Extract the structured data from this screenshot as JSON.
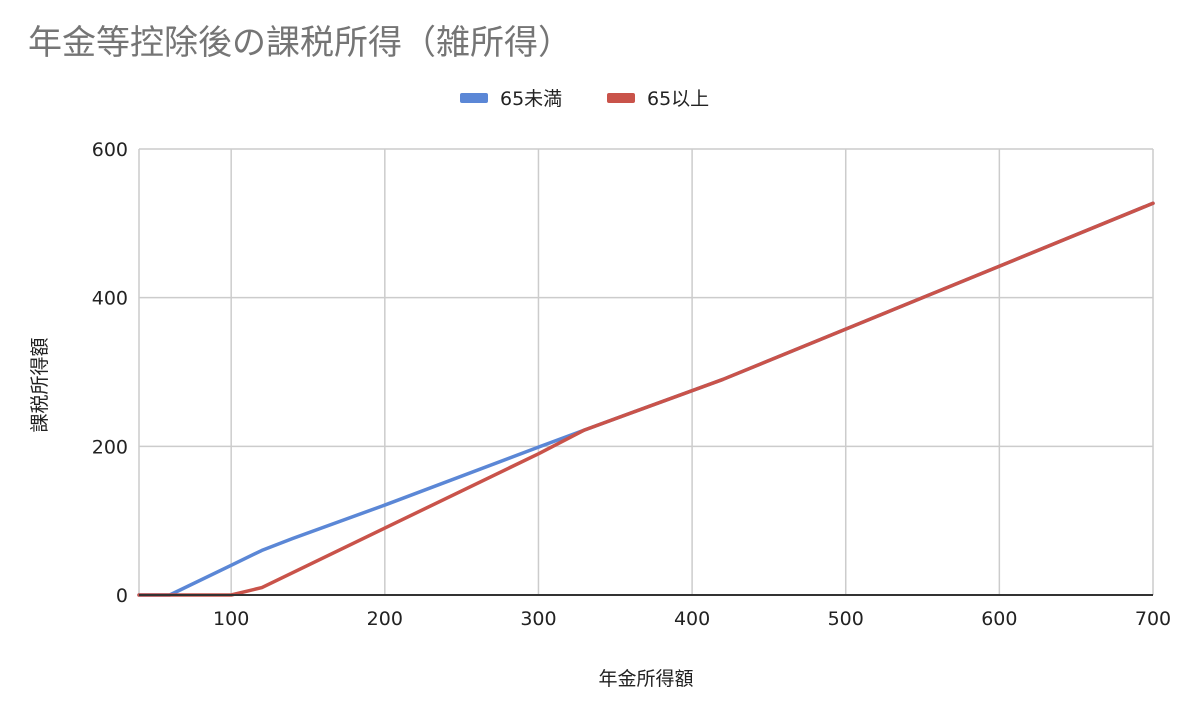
{
  "chart_data": {
    "type": "line",
    "title": "年金等控除後の課税所得（雑所得）",
    "xlabel": "年金所得額",
    "ylabel": "課税所得額",
    "xlim": [
      40,
      700
    ],
    "ylim": [
      0,
      600
    ],
    "x_ticks": [
      100,
      200,
      300,
      400,
      500,
      600,
      700
    ],
    "y_ticks": [
      0,
      200,
      400,
      600
    ],
    "grid": true,
    "legend_position": "top",
    "series": [
      {
        "name": "65未満",
        "color": "#5b87d6",
        "points": [
          [
            40,
            0
          ],
          [
            60,
            0
          ],
          [
            100,
            40
          ],
          [
            120,
            60
          ],
          [
            140,
            76
          ],
          [
            200,
            121
          ],
          [
            300,
            199
          ],
          [
            330,
            222
          ],
          [
            420,
            290
          ],
          [
            700,
            527
          ]
        ]
      },
      {
        "name": "65以上",
        "color": "#c9534a",
        "points": [
          [
            40,
            0
          ],
          [
            100,
            0
          ],
          [
            120,
            10
          ],
          [
            200,
            90
          ],
          [
            300,
            190
          ],
          [
            330,
            222
          ],
          [
            420,
            290
          ],
          [
            700,
            527
          ]
        ]
      }
    ]
  }
}
